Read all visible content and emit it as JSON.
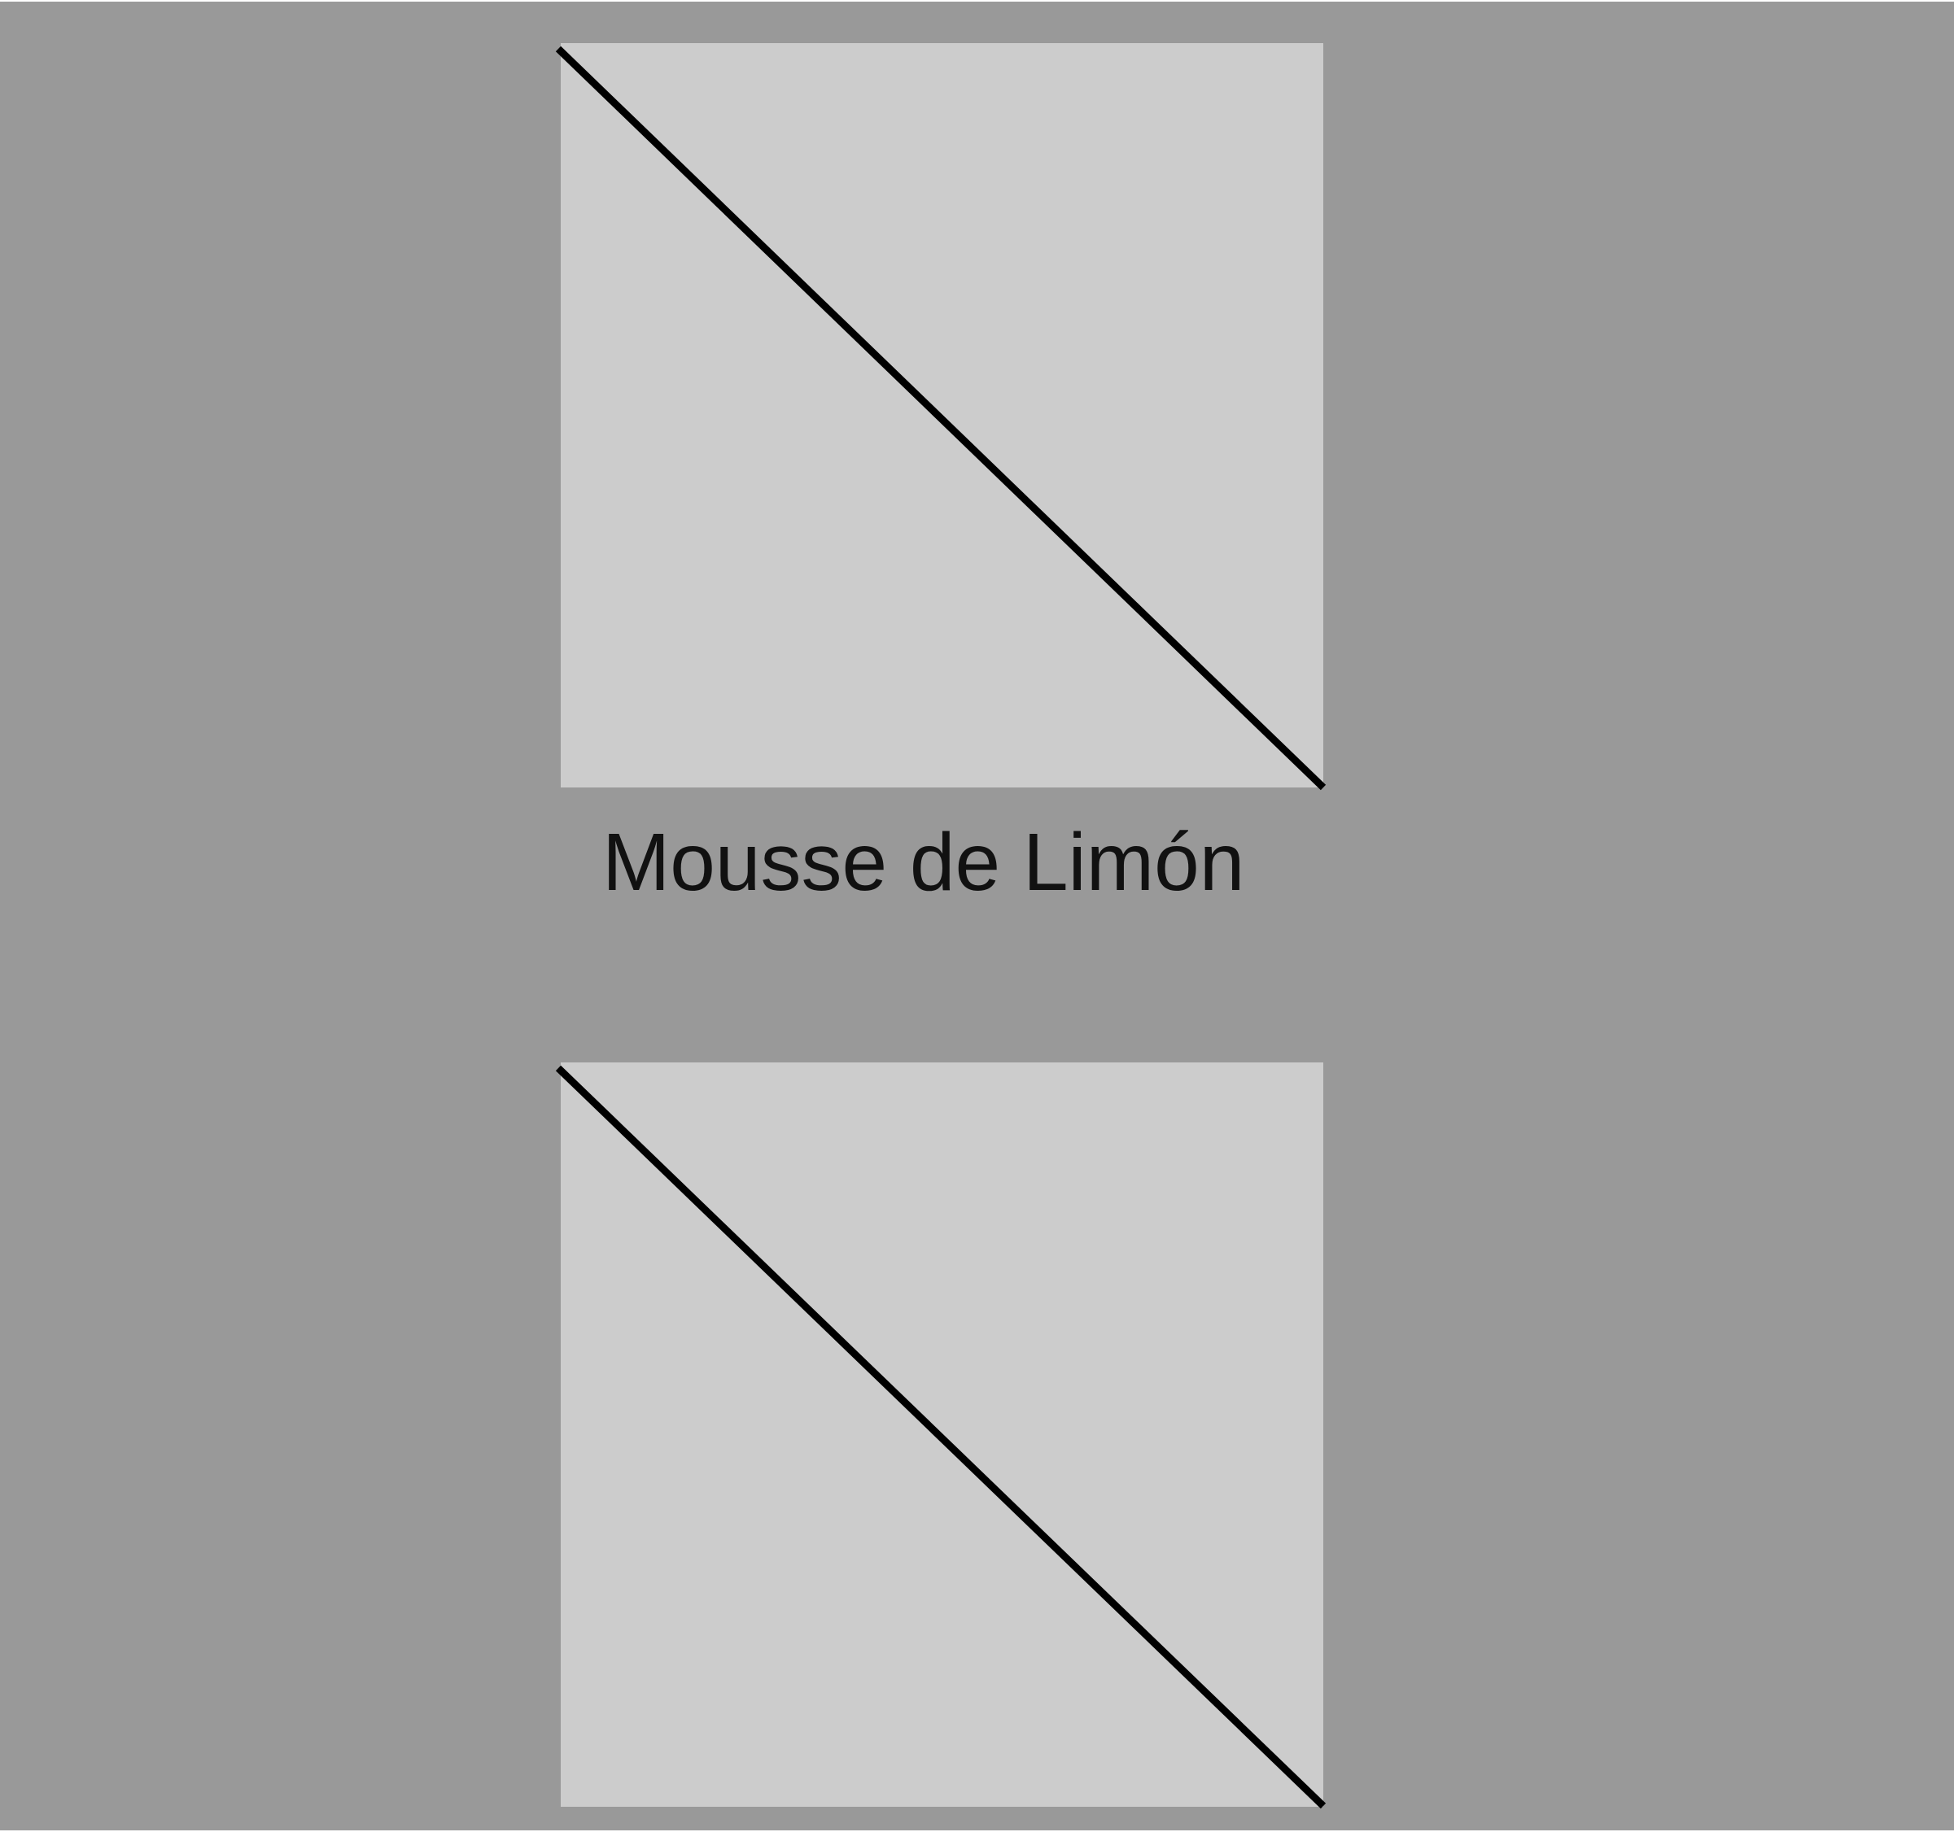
{
  "caption": "Mousse de Limón",
  "colors": {
    "background": "#999999",
    "panel": "#cccccc",
    "line": "#000000",
    "text": "#111111"
  },
  "panels": [
    {
      "name": "top-image-placeholder"
    },
    {
      "name": "bottom-image-placeholder"
    }
  ]
}
